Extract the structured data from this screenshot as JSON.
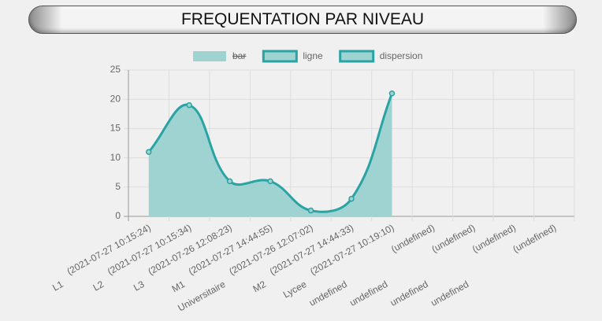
{
  "chart_data": {
    "type": "line",
    "title": "FREQUENTATION PAR NIVEAU",
    "categories": [
      [
        "L1",
        "(2021-07-27 10:15:24)"
      ],
      [
        "L2",
        "(2021-07-27 10:15:34)"
      ],
      [
        "L3",
        "(2021-07-26 12:08:23)"
      ],
      [
        "M1",
        "(2021-07-27 14:44:55)"
      ],
      [
        "Universitaire",
        "(2021-07-26 12:07:02)"
      ],
      [
        "M2",
        "(2021-07-27 14:44:33)"
      ],
      [
        "Lycee",
        "(2021-07-27 10:19:10)"
      ],
      [
        "undefined",
        "(undefined)"
      ],
      [
        "undefined",
        "(undefined)"
      ],
      [
        "undefined",
        "(undefined)"
      ],
      [
        "undefined",
        "(undefined)"
      ]
    ],
    "series": [
      {
        "name": "bar",
        "color": "#9ed3d1",
        "hidden": true
      },
      {
        "name": "ligne",
        "color": "#2aa3a3",
        "fill": "#9ed3d1",
        "values": [
          11,
          19,
          6,
          6,
          1,
          3,
          21,
          null,
          null,
          null,
          null
        ]
      },
      {
        "name": "dispersion",
        "color": "#2aa3a3"
      }
    ],
    "ylim": [
      0,
      25
    ],
    "yticks": [
      0,
      5,
      10,
      15,
      20,
      25
    ],
    "grid": true,
    "legend": "top"
  }
}
